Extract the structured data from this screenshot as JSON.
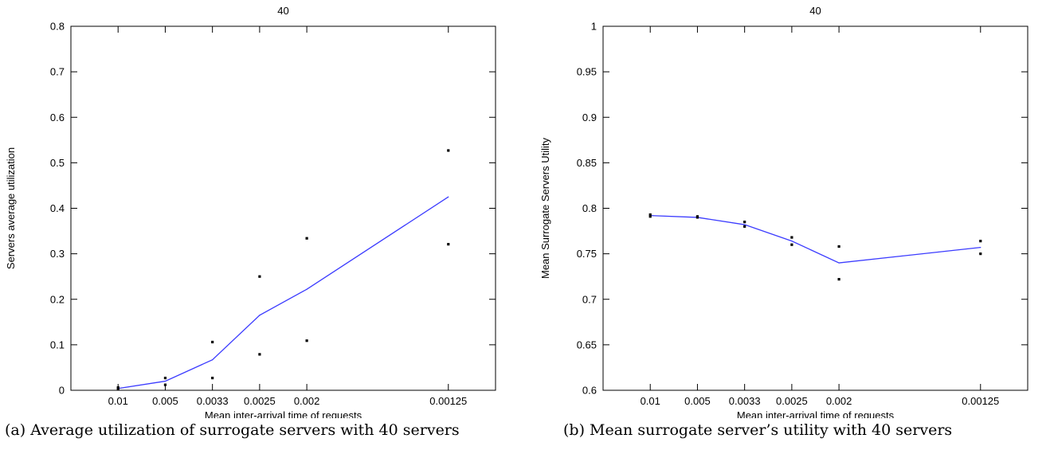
{
  "chart_data": [
    {
      "type": "line",
      "title": "40",
      "xlabel": "Mean inter-arrival time of requests",
      "ylabel": "Servers average utilization",
      "categories": [
        "0.01",
        "0.005",
        "0.0033",
        "0.0025",
        "0.002",
        "0.00125"
      ],
      "x_positions": [
        100,
        200,
        300,
        400,
        500,
        800
      ],
      "ylim": [
        0,
        0.8
      ],
      "yticks": [
        0,
        0.1,
        0.2,
        0.3,
        0.4,
        0.5,
        0.6,
        0.7,
        0.8
      ],
      "ytick_labels": [
        "0",
        "0.1",
        "0.2",
        "0.3",
        "0.4",
        "0.5",
        "0.6",
        "0.7",
        "0.8"
      ],
      "grid": false,
      "line_color": "#3b3bff",
      "series": [
        {
          "values": [
            0.004,
            0.02,
            0.067,
            0.165,
            0.222,
            0.425
          ]
        }
      ],
      "scatter_points": [
        [
          100,
          0.003
        ],
        [
          100,
          0.006
        ],
        [
          200,
          0.027
        ],
        [
          200,
          0.012
        ],
        [
          300,
          0.106
        ],
        [
          300,
          0.027
        ],
        [
          400,
          0.25
        ],
        [
          400,
          0.079
        ],
        [
          500,
          0.334
        ],
        [
          500,
          0.109
        ],
        [
          800,
          0.527
        ],
        [
          800,
          0.321
        ]
      ],
      "caption": "(a) Average utilization of surrogate servers with 40 servers"
    },
    {
      "type": "line",
      "title": "40",
      "xlabel": "Mean inter-arrival time of requests",
      "ylabel": "Mean Surrogate Servers Utility",
      "categories": [
        "0.01",
        "0.005",
        "0.0033",
        "0.0025",
        "0.002",
        "0.00125"
      ],
      "x_positions": [
        100,
        200,
        300,
        400,
        500,
        800
      ],
      "ylim": [
        0.6,
        1
      ],
      "yticks": [
        0.6,
        0.65,
        0.7,
        0.75,
        0.8,
        0.85,
        0.9,
        0.95,
        1
      ],
      "ytick_labels": [
        "0.6",
        "0.65",
        "0.7",
        "0.75",
        "0.8",
        "0.85",
        "0.9",
        "0.95",
        "1"
      ],
      "grid": false,
      "line_color": "#3b3bff",
      "series": [
        {
          "values": [
            0.792,
            0.79,
            0.782,
            0.764,
            0.74,
            0.757
          ]
        }
      ],
      "scatter_points": [
        [
          100,
          0.793
        ],
        [
          100,
          0.791
        ],
        [
          200,
          0.791
        ],
        [
          200,
          0.79
        ],
        [
          300,
          0.785
        ],
        [
          300,
          0.78
        ],
        [
          400,
          0.768
        ],
        [
          400,
          0.76
        ],
        [
          500,
          0.758
        ],
        [
          500,
          0.722
        ],
        [
          800,
          0.764
        ],
        [
          800,
          0.75
        ]
      ],
      "caption": "(b) Mean surrogate server’s utility with 40 servers"
    }
  ]
}
